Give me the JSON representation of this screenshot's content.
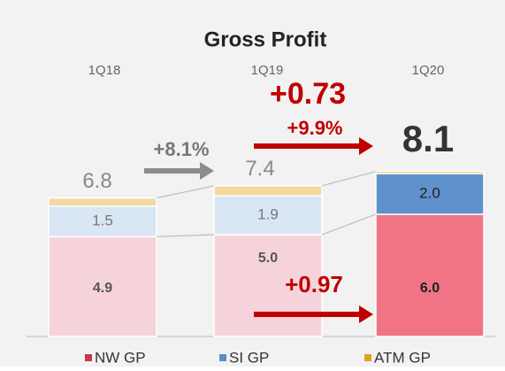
{
  "chart_data": {
    "type": "stacked-bar",
    "title": "Gross Profit",
    "categories": [
      "1Q18",
      "1Q19",
      "1Q20"
    ],
    "series": [
      {
        "name": "NW GP",
        "color": "#c8384e",
        "bar_colors": [
          "#f6d3da",
          "#f6d3da",
          "#f07484"
        ],
        "values": [
          4.9,
          5.0,
          6.0
        ],
        "value_labels": [
          "4.9",
          "5.0",
          "6.0"
        ]
      },
      {
        "name": "SI GP",
        "color": "#5b8ec9",
        "bar_colors": [
          "#d9e6f3",
          "#d9e6f3",
          "#5f92cc"
        ],
        "values": [
          1.5,
          1.9,
          2.0
        ],
        "value_labels": [
          "1.5",
          "1.9",
          "2.0"
        ]
      },
      {
        "name": "ATM GP",
        "color": "#d9a520",
        "bar_colors": [
          "#f1d9a0",
          "#f1d9a0",
          "#e2ad3a"
        ],
        "values": [
          0.4,
          0.5,
          0.1
        ]
      }
    ],
    "totals": [
      6.8,
      7.4,
      8.1
    ],
    "annotations": [
      "+8.1%",
      "+0.73",
      "+9.9%",
      "+0.97"
    ],
    "ylim": [
      0,
      10
    ]
  }
}
